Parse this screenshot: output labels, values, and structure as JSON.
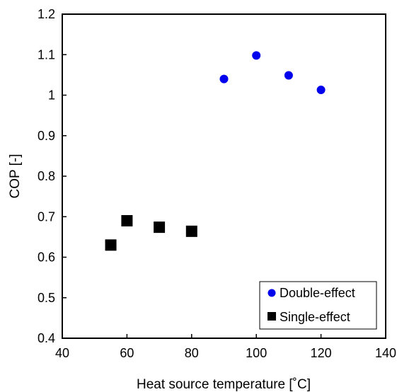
{
  "chart_data": {
    "type": "scatter",
    "title": "",
    "xlabel": "Heat source temperature [˚C]",
    "ylabel": "COP [-]",
    "xlim": [
      40,
      140
    ],
    "ylim": [
      0.4,
      1.2
    ],
    "xticks": [
      40,
      60,
      80,
      100,
      120,
      140
    ],
    "xtick_labels": [
      "40",
      "60",
      "80",
      "100",
      "120",
      "140"
    ],
    "yticks": [
      0.4,
      0.5,
      0.6,
      0.7,
      0.8,
      0.9,
      1.0,
      1.1,
      1.2
    ],
    "ytick_labels": [
      "0.4",
      "0.5",
      "0.6",
      "0.7",
      "0.8",
      "0.9",
      "1",
      "1.1",
      "1.2"
    ],
    "grid": false,
    "legend_position": "bottom-right",
    "series": [
      {
        "name": "Double-effect",
        "marker": "circle",
        "color": "#0000ee",
        "points": [
          {
            "x": 90,
            "y": 1.04
          },
          {
            "x": 100,
            "y": 1.098
          },
          {
            "x": 110,
            "y": 1.049
          },
          {
            "x": 120,
            "y": 1.013
          }
        ]
      },
      {
        "name": "Single-effect",
        "marker": "square",
        "color": "#000000",
        "points": [
          {
            "x": 55,
            "y": 0.63
          },
          {
            "x": 60,
            "y": 0.69
          },
          {
            "x": 70,
            "y": 0.674
          },
          {
            "x": 80,
            "y": 0.664
          }
        ]
      }
    ]
  }
}
